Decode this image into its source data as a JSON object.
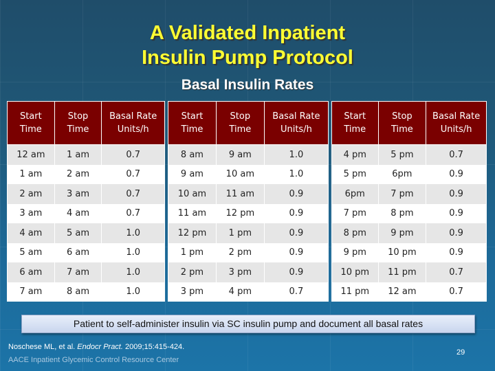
{
  "slide": {
    "title_line1": "A Validated Inpatient",
    "title_line2": "Insulin Pump Protocol",
    "subtitle": "Basal Insulin Rates",
    "headers": {
      "start1": "Start",
      "start2": "Time",
      "stop1": "Stop",
      "stop2": "Time",
      "rate1": "Basal Rate",
      "rate2": "Units/h"
    },
    "tables": [
      [
        [
          "12 am",
          "1 am",
          "0.7"
        ],
        [
          "1 am",
          "2 am",
          "0.7"
        ],
        [
          "2 am",
          "3 am",
          "0.7"
        ],
        [
          "3 am",
          "4 am",
          "0.7"
        ],
        [
          "4 am",
          "5 am",
          "1.0"
        ],
        [
          "5 am",
          "6 am",
          "1.0"
        ],
        [
          "6 am",
          "7 am",
          "1.0"
        ],
        [
          "7 am",
          "8 am",
          "1.0"
        ]
      ],
      [
        [
          "8 am",
          "9 am",
          "1.0"
        ],
        [
          "9 am",
          "10 am",
          "1.0"
        ],
        [
          "10 am",
          "11 am",
          "0.9"
        ],
        [
          "11 am",
          "12 pm",
          "0.9"
        ],
        [
          "12 pm",
          "1 pm",
          "0.9"
        ],
        [
          "1 pm",
          "2 pm",
          "0.9"
        ],
        [
          "2 pm",
          "3 pm",
          "0.9"
        ],
        [
          "3 pm",
          "4 pm",
          "0.7"
        ]
      ],
      [
        [
          "4 pm",
          "5 pm",
          "0.7"
        ],
        [
          "5 pm",
          "6pm",
          "0.9"
        ],
        [
          "6pm",
          "7 pm",
          "0.9"
        ],
        [
          "7 pm",
          "8 pm",
          "0.9"
        ],
        [
          "8 pm",
          "9 pm",
          "0.9"
        ],
        [
          "9 pm",
          "10 pm",
          "0.9"
        ],
        [
          "10 pm",
          "11 pm",
          "0.7"
        ],
        [
          "11 pm",
          "12 am",
          "0.7"
        ]
      ]
    ],
    "note": "Patient to self-administer insulin via SC insulin pump and document all basal rates",
    "citation_authors": "Noschese ML, et al. ",
    "citation_journal": "Endocr Pract.",
    "citation_rest": " 2009;15:415-424.",
    "footer": "AACE Inpatient Glycemic Control Resource Center",
    "page_number": "29",
    "colors": {
      "header_bg": "#7a0000",
      "title": "#ffff33",
      "background": "#1f5878"
    }
  }
}
